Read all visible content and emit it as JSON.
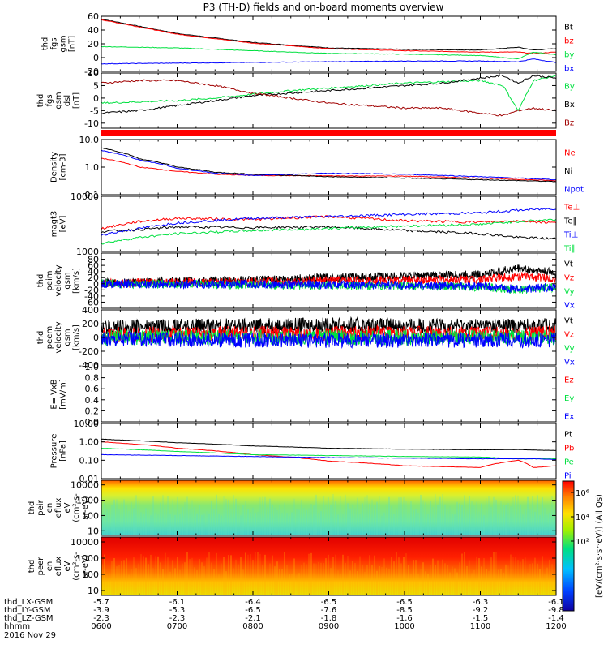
{
  "title": "P3 (TH-D) fields and on-board moments overview",
  "date_label": "2016 Nov 29",
  "colorbar_label": "[eV/(cm²·s·sr·eV)] (All Qs)",
  "colorbar_ticks": [
    "10⁶",
    "10⁴",
    "10²"
  ],
  "xaxis": {
    "tick_times": [
      "0600",
      "0700",
      "0800",
      "0900",
      "1000",
      "1100",
      "1200"
    ],
    "rows": [
      {
        "name": "thd_LX-GSM",
        "values": [
          "-5.7",
          "-6.1",
          "-6.4",
          "-6.5",
          "-6.5",
          "-6.3",
          "-6.1"
        ]
      },
      {
        "name": "thd_LY-GSM",
        "values": [
          "-3.9",
          "-5.3",
          "-6.5",
          "-7.6",
          "-8.5",
          "-9.2",
          "-9.8"
        ]
      },
      {
        "name": "thd_LZ-GSM",
        "values": [
          "-2.3",
          "-2.3",
          "-2.1",
          "-1.8",
          "-1.6",
          "-1.5",
          "-1.4"
        ]
      },
      {
        "name": "hhmm",
        "values": [
          "0600",
          "0700",
          "0800",
          "0900",
          "1000",
          "1100",
          "1200"
        ]
      }
    ]
  },
  "colors": {
    "black": "#000000",
    "red": "#ff0000",
    "darkred": "#a00000",
    "green": "#00e040",
    "blue": "#0000ff"
  },
  "chart_data": [
    {
      "type": "line",
      "id": "fgs_gsm",
      "ylabel": [
        "thd",
        "fgs",
        "gsm",
        "[nT]"
      ],
      "ylim": [
        -20,
        60
      ],
      "yticks": [
        {
          "v": 60,
          "t": "60"
        },
        {
          "v": 40,
          "t": "40"
        },
        {
          "v": 20,
          "t": "20"
        },
        {
          "v": 0,
          "t": "0"
        },
        {
          "v": -20,
          "t": "-20"
        }
      ],
      "x": [
        6,
        7,
        8,
        9,
        10,
        11,
        11.5,
        11.7,
        12
      ],
      "series": [
        {
          "name": "Bt",
          "color": "#000000",
          "values": [
            56,
            35,
            22,
            14,
            12,
            11,
            15,
            11,
            13
          ]
        },
        {
          "name": "bz",
          "color": "#ff0000",
          "values": [
            55,
            34,
            21,
            13,
            10,
            8,
            8,
            6,
            8
          ]
        },
        {
          "name": "by",
          "color": "#00e040",
          "values": [
            16,
            14,
            10,
            6,
            5,
            3,
            -2,
            8,
            4
          ]
        },
        {
          "name": "bx",
          "color": "#0000ff",
          "values": [
            -9,
            -8,
            -7,
            -6,
            -5,
            -5,
            -6,
            -2,
            -7
          ]
        }
      ]
    },
    {
      "type": "line",
      "id": "fgs_gse",
      "ylabel": [
        "thd",
        "fgs",
        "gsm",
        "dsl",
        "[nT]"
      ],
      "ylim": [
        -12,
        10
      ],
      "yticks": [
        {
          "v": 10,
          "t": "10"
        },
        {
          "v": 5,
          "t": "5"
        },
        {
          "v": 0,
          "t": "0"
        },
        {
          "v": -5,
          "t": "-5"
        },
        {
          "v": -10,
          "t": "-10"
        }
      ],
      "x": [
        6,
        6.5,
        7,
        7.5,
        8,
        8.5,
        9,
        9.5,
        10,
        10.5,
        11,
        11.3,
        11.5,
        11.7,
        12
      ],
      "series": [
        {
          "name": "By",
          "color": "#00e040",
          "values": [
            -2,
            -1.5,
            -1,
            0,
            1.5,
            3,
            4,
            5,
            6,
            6.5,
            7,
            5,
            -5,
            7,
            9
          ]
        },
        {
          "name": "Bx",
          "color": "#000000",
          "values": [
            -6,
            -5,
            -3,
            -1,
            1,
            2,
            3,
            4,
            5,
            6,
            8,
            9,
            6,
            9,
            8
          ]
        },
        {
          "name": "Bz",
          "color": "#a00000",
          "values": [
            6,
            7,
            7,
            5,
            2,
            0,
            -2,
            -3,
            -4,
            -4,
            -6,
            -7,
            -5,
            -4,
            -5
          ]
        }
      ]
    },
    {
      "type": "line",
      "id": "density",
      "ylabel": [
        "Density",
        "[cm-3]"
      ],
      "log": true,
      "ylim": [
        0.1,
        10
      ],
      "yticks": [
        {
          "v": 10,
          "t": "10.0"
        },
        {
          "v": 1,
          "t": "1.0"
        },
        {
          "v": 0.1,
          "t": "0.1"
        }
      ],
      "x": [
        6,
        6.5,
        7,
        7.5,
        8,
        9,
        10,
        11,
        12
      ],
      "series": [
        {
          "name": "Ne",
          "color": "#ff0000",
          "values": [
            2.1,
            1.0,
            0.7,
            0.55,
            0.5,
            0.48,
            0.47,
            0.4,
            0.32
          ]
        },
        {
          "name": "Ni",
          "color": "#000000",
          "values": [
            5.0,
            2.0,
            1.0,
            0.65,
            0.55,
            0.45,
            0.4,
            0.35,
            0.3
          ]
        },
        {
          "name": "Npot",
          "color": "#0000ff",
          "values": [
            4.0,
            1.8,
            0.9,
            0.6,
            0.5,
            0.6,
            0.55,
            0.45,
            0.35
          ]
        }
      ]
    },
    {
      "type": "line",
      "id": "temperature",
      "ylabel": [
        "magt3",
        "[eV]"
      ],
      "log": true,
      "ylim": [
        1000,
        10000
      ],
      "yticks": [
        {
          "v": 10000,
          "t": "10000"
        },
        {
          "v": 1000,
          "t": "1000"
        }
      ],
      "x": [
        6,
        6.5,
        7,
        8,
        9,
        10,
        11,
        11.5,
        12
      ],
      "series": [
        {
          "name": "Te⊥",
          "color": "#ff0000",
          "values": [
            2600,
            3500,
            4000,
            3800,
            4300,
            3600,
            3400,
            3600,
            3300
          ]
        },
        {
          "name": "Te∥",
          "color": "#000000",
          "values": [
            2300,
            2500,
            2800,
            2700,
            2800,
            2400,
            2100,
            1800,
            1700
          ]
        },
        {
          "name": "Ti⊥",
          "color": "#0000ff",
          "values": [
            2000,
            2600,
            3300,
            4000,
            4300,
            4700,
            5000,
            5600,
            6000
          ]
        },
        {
          "name": "Ti∥",
          "color": "#00e040",
          "values": [
            1400,
            1800,
            2100,
            2400,
            2600,
            2900,
            3100,
            3500,
            3800
          ]
        }
      ]
    },
    {
      "type": "line",
      "id": "peim_velocity",
      "ylabel": [
        "thd",
        "peim",
        "velocity",
        "gsm",
        "[km/s]"
      ],
      "ylim": [
        -80,
        100
      ],
      "yticks": [
        {
          "v": 80,
          "t": "80"
        },
        {
          "v": 60,
          "t": "60"
        },
        {
          "v": 40,
          "t": "40"
        },
        {
          "v": 20,
          "t": "20"
        },
        {
          "v": 0,
          "t": "0"
        },
        {
          "v": -20,
          "t": "-20"
        },
        {
          "v": -40,
          "t": "-40"
        },
        {
          "v": -60,
          "t": "-60"
        }
      ],
      "x": [
        6,
        7,
        8,
        9,
        10,
        11,
        11.5,
        12
      ],
      "series": [
        {
          "name": "Vt",
          "color": "#000000",
          "values": [
            3,
            8,
            12,
            20,
            25,
            30,
            50,
            35
          ]
        },
        {
          "name": "Vz",
          "color": "#ff0000",
          "values": [
            2,
            4,
            6,
            10,
            12,
            15,
            25,
            18
          ]
        },
        {
          "name": "Vy",
          "color": "#00e040",
          "values": [
            0,
            -2,
            -4,
            -6,
            -8,
            -10,
            -20,
            -12
          ]
        },
        {
          "name": "Vx",
          "color": "#0000ff",
          "values": [
            0,
            -1,
            -2,
            -3,
            -5,
            -8,
            -18,
            -10
          ]
        }
      ]
    },
    {
      "type": "line",
      "id": "peem_velocity",
      "ylabel": [
        "thd",
        "peem",
        "velocity",
        "gsm",
        "[km/s]"
      ],
      "ylim": [
        -400,
        400
      ],
      "yticks": [
        {
          "v": 400,
          "t": "400"
        },
        {
          "v": 200,
          "t": "200"
        },
        {
          "v": 0,
          "t": "0"
        },
        {
          "v": -200,
          "t": "-200"
        },
        {
          "v": -400,
          "t": "-400"
        }
      ],
      "x": [
        6,
        7,
        8,
        9,
        10,
        11,
        12
      ],
      "series": [
        {
          "name": "Vt",
          "color": "#000000",
          "values": [
            140,
            160,
            170,
            180,
            170,
            170,
            170
          ]
        },
        {
          "name": "Vz",
          "color": "#ff0000",
          "values": [
            40,
            50,
            60,
            60,
            60,
            60,
            60
          ]
        },
        {
          "name": "Vy",
          "color": "#00e040",
          "values": [
            0,
            0,
            0,
            0,
            0,
            0,
            0
          ]
        },
        {
          "name": "Vx",
          "color": "#0000ff",
          "values": [
            -20,
            -30,
            -40,
            -40,
            -40,
            -40,
            -40
          ]
        }
      ]
    },
    {
      "type": "line",
      "id": "efield",
      "ylabel": [
        "E=-VxB",
        "[mV/m]"
      ],
      "ylim": [
        0,
        1
      ],
      "yticks": [
        {
          "v": 1,
          "t": "1.0"
        },
        {
          "v": 0.8,
          "t": "0.8"
        },
        {
          "v": 0.6,
          "t": "0.6"
        },
        {
          "v": 0.4,
          "t": "0.4"
        },
        {
          "v": 0.2,
          "t": "0.2"
        },
        {
          "v": 0,
          "t": "0.0"
        }
      ],
      "x": [],
      "series": [
        {
          "name": "Ez",
          "color": "#ff0000",
          "values": []
        },
        {
          "name": "Ey",
          "color": "#00e040",
          "values": []
        },
        {
          "name": "Ex",
          "color": "#0000ff",
          "values": []
        }
      ]
    },
    {
      "type": "line",
      "id": "pressure",
      "ylabel": [
        "Pressure",
        "[nPa]"
      ],
      "log": true,
      "ylim": [
        0.01,
        10
      ],
      "yticks": [
        {
          "v": 10,
          "t": "10.00"
        },
        {
          "v": 1,
          "t": "1.00"
        },
        {
          "v": 0.1,
          "t": "0.10"
        },
        {
          "v": 0.01,
          "t": "0.01"
        }
      ],
      "x": [
        6,
        7,
        8,
        9,
        10,
        11,
        11.5,
        11.7,
        12
      ],
      "series": [
        {
          "name": "Pt",
          "color": "#000000",
          "values": [
            1.4,
            0.9,
            0.6,
            0.45,
            0.4,
            0.37,
            0.38,
            0.36,
            0.34
          ]
        },
        {
          "name": "Pb",
          "color": "#ff0000",
          "values": [
            1.0,
            0.45,
            0.2,
            0.09,
            0.05,
            0.04,
            0.1,
            0.04,
            0.05
          ]
        },
        {
          "name": "Pe",
          "color": "#00e040",
          "values": [
            0.45,
            0.3,
            0.2,
            0.18,
            0.16,
            0.15,
            0.12,
            0.12,
            0.12
          ]
        },
        {
          "name": "Pi",
          "color": "#0000ff",
          "values": [
            0.2,
            0.18,
            0.16,
            0.14,
            0.13,
            0.12,
            0.12,
            0.12,
            0.11
          ]
        }
      ]
    },
    {
      "type": "heatmap",
      "id": "peir_en_eflux",
      "ylabel": [
        "thd",
        "peir",
        "en",
        "eflux",
        "eV",
        "(cm²-s-",
        "sr-eV)"
      ],
      "log": true,
      "ylim": [
        5,
        20000
      ],
      "yticks": [
        {
          "v": 10000,
          "t": "10000"
        },
        {
          "v": 1000,
          "t": "1000"
        },
        {
          "v": 100,
          "t": "100"
        },
        {
          "v": 10,
          "t": "10"
        }
      ]
    },
    {
      "type": "heatmap",
      "id": "peer_en_eflux",
      "ylabel": [
        "thd",
        "peer",
        "en",
        "eflux",
        "eV",
        "(cm²-s-",
        "sr-eV)"
      ],
      "log": true,
      "ylim": [
        5,
        20000
      ],
      "yticks": [
        {
          "v": 10000,
          "t": "10000"
        },
        {
          "v": 1000,
          "t": "1000"
        },
        {
          "v": 100,
          "t": "100"
        },
        {
          "v": 10,
          "t": "10"
        }
      ]
    }
  ]
}
